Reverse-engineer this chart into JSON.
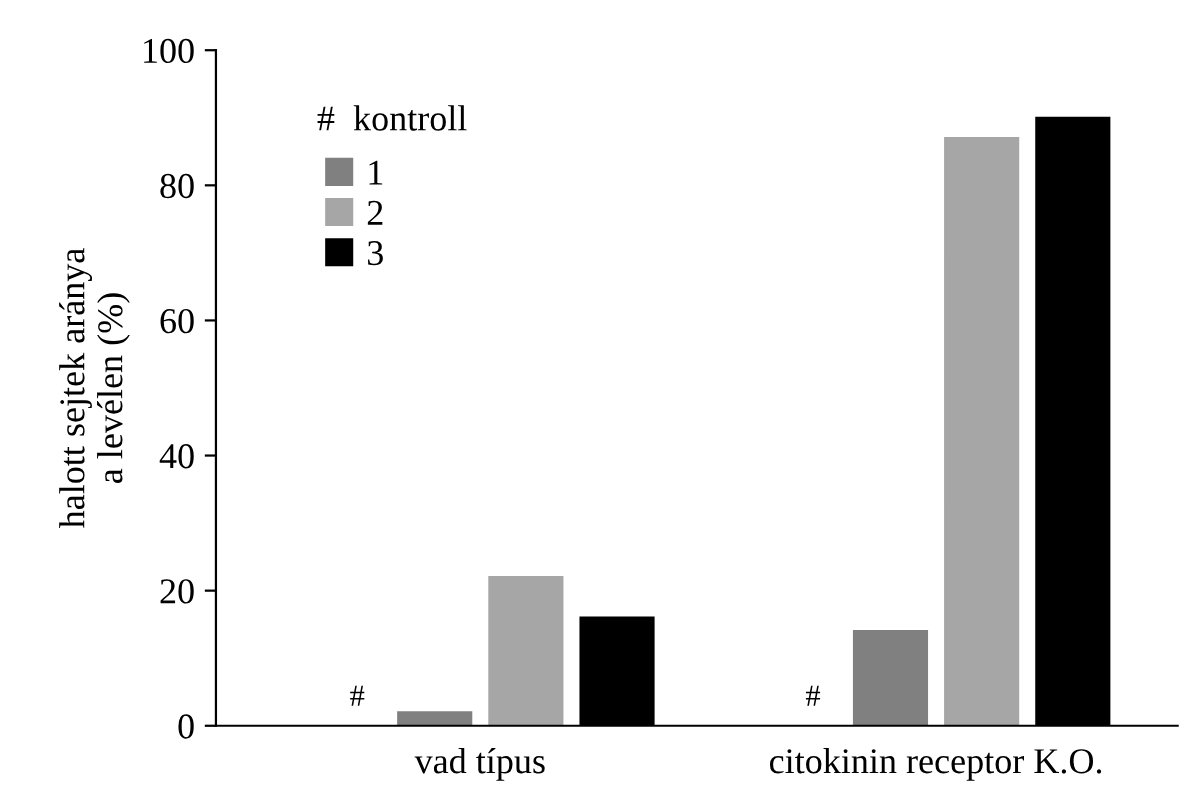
{
  "chart_data": {
    "type": "bar",
    "ylabel": "halott sejtek aránya\na levélen (%)",
    "categories": [
      "vad típus",
      "citokinin receptor K.O."
    ],
    "series": [
      {
        "name": "1",
        "color": "#808080",
        "values": [
          2,
          14
        ]
      },
      {
        "name": "2",
        "color": "#a6a6a6",
        "values": [
          22,
          87
        ]
      },
      {
        "name": "3",
        "color": "#000000",
        "values": [
          16,
          90
        ]
      }
    ],
    "annotations": [
      "#  kontroll",
      "#",
      "#"
    ],
    "ylim": [
      0,
      100
    ],
    "yticks": [
      0,
      20,
      40,
      60,
      80,
      100
    ],
    "grid": false,
    "legend": "top left"
  }
}
